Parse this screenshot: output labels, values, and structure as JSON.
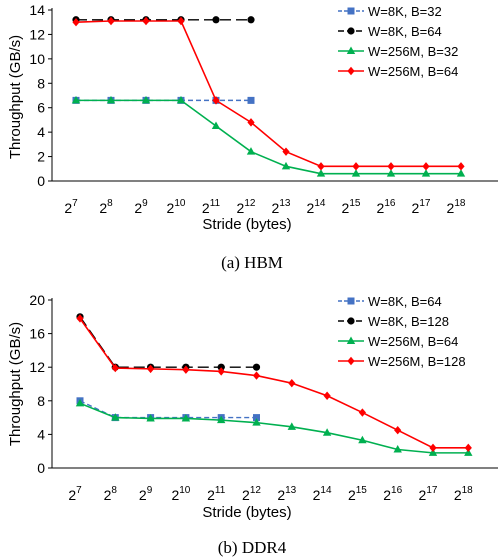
{
  "chart_data": [
    {
      "type": "line",
      "caption": "(a) HBM",
      "xlabel": "Stride (bytes)",
      "ylabel": "Throughput (GB/s)",
      "ylim": [
        0,
        14
      ],
      "yticks": [
        0,
        2,
        4,
        6,
        8,
        10,
        12,
        14
      ],
      "x_exponents": [
        7,
        8,
        9,
        10,
        11,
        12,
        13,
        14,
        15,
        16,
        17,
        18
      ],
      "x_base": "2",
      "grid": false,
      "legend_position": "top-right",
      "series": [
        {
          "name": "W=8K, B=32",
          "color": "#4472C4",
          "dash": "dash",
          "marker": "square",
          "x": [
            7,
            8,
            9,
            10,
            11,
            12
          ],
          "values": [
            6.6,
            6.6,
            6.6,
            6.6,
            6.6,
            6.6
          ]
        },
        {
          "name": "W=8K, B=64",
          "color": "#000000",
          "dash": "longdash",
          "marker": "circle",
          "x": [
            7,
            8,
            9,
            10,
            11,
            12
          ],
          "values": [
            13.2,
            13.2,
            13.2,
            13.2,
            13.2,
            13.2
          ]
        },
        {
          "name": "W=256M, B=32",
          "color": "#00B050",
          "dash": "solid",
          "marker": "triangle",
          "x": [
            7,
            8,
            9,
            10,
            11,
            12,
            13,
            14,
            15,
            16,
            17,
            18
          ],
          "values": [
            6.6,
            6.6,
            6.6,
            6.6,
            4.5,
            2.4,
            1.2,
            0.6,
            0.6,
            0.6,
            0.6,
            0.6
          ]
        },
        {
          "name": "W=256M, B=64",
          "color": "#FF0000",
          "dash": "solid",
          "marker": "diamond",
          "x": [
            7,
            8,
            9,
            10,
            11,
            12,
            13,
            14,
            15,
            16,
            17,
            18
          ],
          "values": [
            13.0,
            13.1,
            13.1,
            13.1,
            6.6,
            4.8,
            2.4,
            1.2,
            1.2,
            1.2,
            1.2,
            1.2
          ]
        }
      ]
    },
    {
      "type": "line",
      "caption": "(b) DDR4",
      "xlabel": "Stride (bytes)",
      "ylabel": "Throughput (GB/s)",
      "ylim": [
        0,
        20
      ],
      "yticks": [
        0,
        4,
        8,
        12,
        16,
        20
      ],
      "x_exponents": [
        7,
        8,
        9,
        10,
        11,
        12,
        13,
        14,
        15,
        16,
        17,
        18
      ],
      "x_base": "2",
      "grid": false,
      "legend_position": "top-right",
      "series": [
        {
          "name": "W=8K, B=64",
          "color": "#4472C4",
          "dash": "dash",
          "marker": "square",
          "x": [
            7,
            8,
            9,
            10,
            11,
            12
          ],
          "values": [
            8.0,
            6.0,
            6.0,
            6.0,
            6.0,
            6.0
          ]
        },
        {
          "name": "W=8K, B=128",
          "color": "#000000",
          "dash": "longdash",
          "marker": "circle",
          "x": [
            7,
            8,
            9,
            10,
            11,
            12
          ],
          "values": [
            18.0,
            12.0,
            12.0,
            12.0,
            12.0,
            12.0
          ]
        },
        {
          "name": "W=256M, B=64",
          "color": "#00B050",
          "dash": "solid",
          "marker": "triangle",
          "x": [
            7,
            8,
            9,
            10,
            11,
            12,
            13,
            14,
            15,
            16,
            17,
            18
          ],
          "values": [
            7.7,
            6.0,
            5.9,
            5.9,
            5.7,
            5.4,
            4.9,
            4.2,
            3.3,
            2.2,
            1.8,
            1.8
          ]
        },
        {
          "name": "W=256M, B=128",
          "color": "#FF0000",
          "dash": "solid",
          "marker": "diamond",
          "x": [
            7,
            8,
            9,
            10,
            11,
            12,
            13,
            14,
            15,
            16,
            17,
            18
          ],
          "values": [
            17.8,
            11.9,
            11.8,
            11.7,
            11.5,
            11.0,
            10.1,
            8.6,
            6.6,
            4.5,
            2.4,
            2.4
          ]
        }
      ]
    }
  ]
}
